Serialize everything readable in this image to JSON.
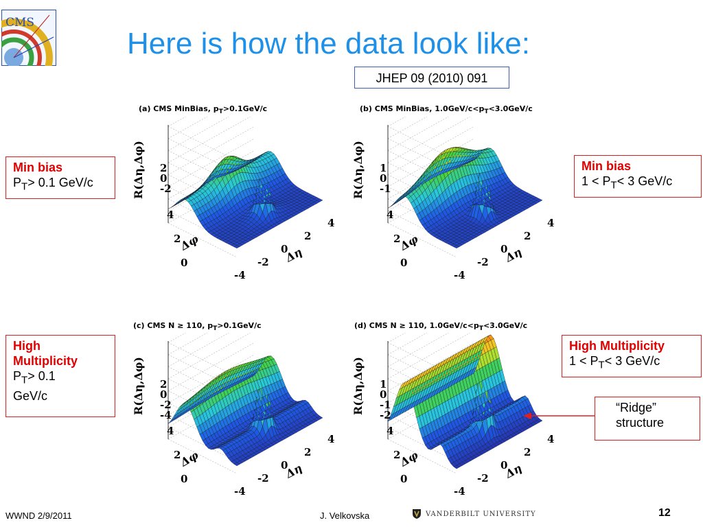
{
  "slide": {
    "title": "Here is how the data look like:",
    "logo_text": "CMS",
    "reference": "JHEP 09 (2010) 091"
  },
  "panels": [
    {
      "caption": "(a) CMS MinBias, p",
      "caption_sub": "T",
      "caption_rest": ">0.1GeV/c",
      "zlabel": "R(Δη,Δφ)",
      "zticks": [
        "2",
        "0",
        "-2"
      ],
      "phi_label": "Δφ",
      "eta_label": "Δη",
      "phi_ticks": [
        "4",
        "2",
        "0"
      ],
      "eta_ticks": [
        "4",
        "2",
        "0",
        "-2",
        "-4"
      ]
    },
    {
      "caption": "(b) CMS MinBias, 1.0GeV/c<p",
      "caption_sub": "T",
      "caption_rest": "<3.0GeV/c",
      "zlabel": "R(Δη,Δφ)",
      "zticks": [
        "1",
        "0",
        "-1"
      ],
      "phi_label": "Δφ",
      "eta_label": "Δη",
      "phi_ticks": [
        "4",
        "2",
        "0"
      ],
      "eta_ticks": [
        "4",
        "2",
        "0",
        "-2",
        "-4"
      ]
    },
    {
      "caption": "(c) CMS N ≥ 110, p",
      "caption_sub": "T",
      "caption_rest": ">0.1GeV/c",
      "zlabel": "R(Δη,Δφ)",
      "zticks": [
        "2",
        "0",
        "-2",
        "-4"
      ],
      "phi_label": "Δφ",
      "eta_label": "Δη",
      "phi_ticks": [
        "4",
        "2",
        "0"
      ],
      "eta_ticks": [
        "4",
        "2",
        "0",
        "-2",
        "-4"
      ]
    },
    {
      "caption": "(d) CMS N ≥ 110, 1.0GeV/c<p",
      "caption_sub": "T",
      "caption_rest": "<3.0GeV/c",
      "zlabel": "R(Δη,Δφ)",
      "zticks": [
        "1",
        "0",
        "-1",
        "-2"
      ],
      "phi_label": "Δφ",
      "eta_label": "Δη",
      "phi_ticks": [
        "4",
        "2",
        "0"
      ],
      "eta_ticks": [
        "4",
        "2",
        "0",
        "-2",
        "-4"
      ]
    }
  ],
  "labels": {
    "a": {
      "head": "Min bias",
      "line_pre": "P",
      "line_sub": "T",
      "line_post": "> 0.1 GeV/c"
    },
    "b": {
      "head": "Min bias",
      "line_pre": "1 < P",
      "line_sub": "T",
      "line_post": "< 3 GeV/c"
    },
    "c": {
      "head1": "High",
      "head2": "Multiplicity",
      "line_pre": "P",
      "line_sub": "T",
      "line_post": "> 0.1",
      "line2": "GeV/c"
    },
    "d": {
      "head": "High Multiplicity",
      "line_pre": "1 < P",
      "line_sub": "T",
      "line_post": "< 3 GeV/c"
    },
    "ridge": {
      "line1": "“Ridge”",
      "line2": "structure"
    }
  },
  "footer": {
    "left": "WWND 2/9/2011",
    "center": "J. Velkovska",
    "university": "VANDERBILT UNIVERSITY",
    "page": "12"
  },
  "colors": {
    "title": "#1e90e8",
    "label_border": "#d42020",
    "label_head": "#e00000",
    "ref_border": "#3b5bb5"
  }
}
